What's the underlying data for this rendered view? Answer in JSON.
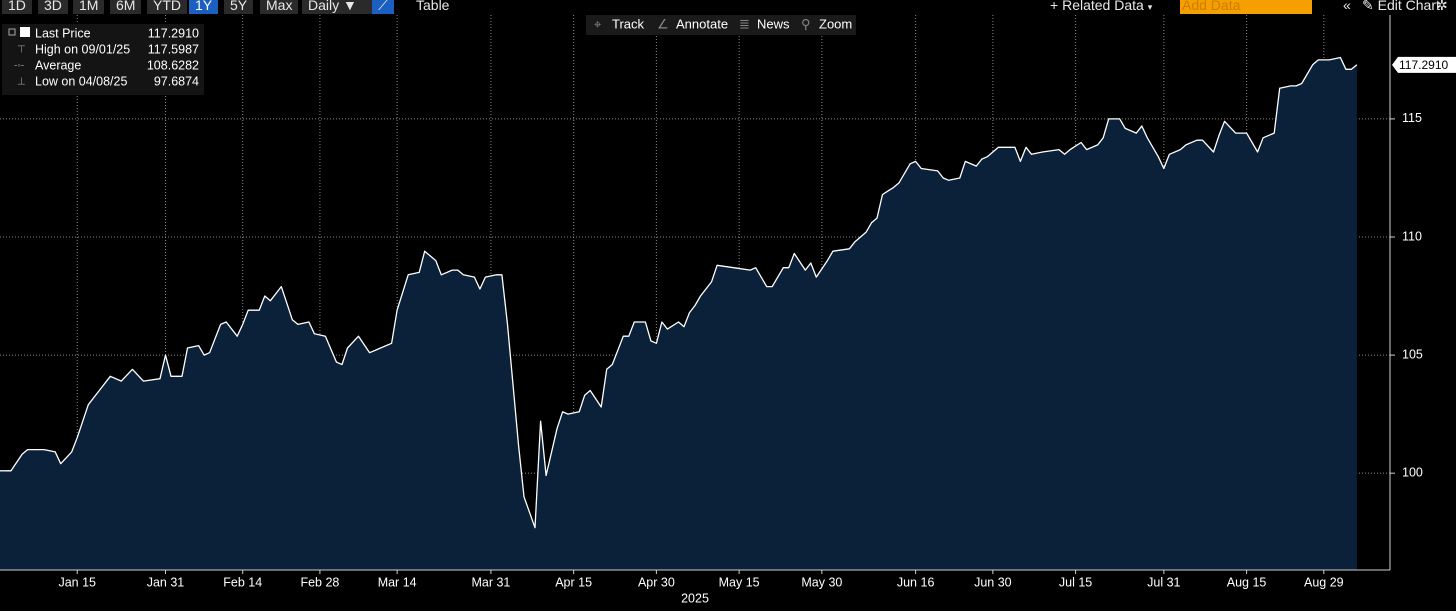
{
  "toolbar": {
    "periods": [
      "1D",
      "3D",
      "1M",
      "6M",
      "YTD",
      "1Y",
      "5Y",
      "Max"
    ],
    "active_period": "1Y",
    "frequency": "Daily",
    "view": "Table",
    "related": "Related Data",
    "add_data": "Add Data",
    "edit": "Edit Chart"
  },
  "chart_tools": [
    "Track",
    "Annotate",
    "News",
    "Zoom"
  ],
  "chart_data": {
    "type": "area",
    "xlabel": "2025",
    "color": "#ffffff",
    "fill": "#0b2039",
    "legend": [
      {
        "label": "Last Price",
        "value": "117.2910"
      },
      {
        "label": "High on 09/01/25",
        "value": "117.5987"
      },
      {
        "label": "Average",
        "value": "108.6282"
      },
      {
        "label": "Low on 04/08/25",
        "value": "97.6874"
      }
    ],
    "x": [
      "2025-01-02",
      "2025-01-03",
      "2025-01-05",
      "2025-01-06",
      "2025-01-09",
      "2025-01-11",
      "2025-01-12",
      "2025-01-14",
      "2025-01-15",
      "2025-01-17",
      "2025-01-19",
      "2025-01-21",
      "2025-01-23",
      "2025-01-25",
      "2025-01-27",
      "2025-01-30",
      "2025-01-31",
      "2025-02-01",
      "2025-02-03",
      "2025-02-04",
      "2025-02-06",
      "2025-02-07",
      "2025-02-08",
      "2025-02-10",
      "2025-02-11",
      "2025-02-13",
      "2025-02-14",
      "2025-02-15",
      "2025-02-17",
      "2025-02-18",
      "2025-02-19",
      "2025-02-21",
      "2025-02-22",
      "2025-02-23",
      "2025-02-24",
      "2025-02-26",
      "2025-02-27",
      "2025-03-01",
      "2025-03-03",
      "2025-03-04",
      "2025-03-05",
      "2025-03-07",
      "2025-03-09",
      "2025-03-10",
      "2025-03-12",
      "2025-03-13",
      "2025-03-14",
      "2025-03-16",
      "2025-03-18",
      "2025-03-19",
      "2025-03-21",
      "2025-03-22",
      "2025-03-24",
      "2025-03-25",
      "2025-03-26",
      "2025-03-28",
      "2025-03-29",
      "2025-03-30",
      "2025-04-01",
      "2025-04-02",
      "2025-04-03",
      "2025-04-05",
      "2025-04-06",
      "2025-04-08",
      "2025-04-09",
      "2025-04-10",
      "2025-04-12",
      "2025-04-13",
      "2025-04-14",
      "2025-04-16",
      "2025-04-17",
      "2025-04-18",
      "2025-04-20",
      "2025-04-21",
      "2025-04-22",
      "2025-04-24",
      "2025-04-25",
      "2025-04-26",
      "2025-04-28",
      "2025-04-29",
      "2025-04-30",
      "2025-05-01",
      "2025-05-02",
      "2025-05-04",
      "2025-05-05",
      "2025-05-06",
      "2025-05-07",
      "2025-05-08",
      "2025-05-10",
      "2025-05-11",
      "2025-05-14",
      "2025-05-17",
      "2025-05-18",
      "2025-05-20",
      "2025-05-21",
      "2025-05-23",
      "2025-05-24",
      "2025-05-25",
      "2025-05-27",
      "2025-05-28",
      "2025-05-29",
      "2025-05-31",
      "2025-06-01",
      "2025-06-04",
      "2025-06-05",
      "2025-06-07",
      "2025-06-08",
      "2025-06-09",
      "2025-06-10",
      "2025-06-12",
      "2025-06-13",
      "2025-06-15",
      "2025-06-16",
      "2025-06-17",
      "2025-06-20",
      "2025-06-21",
      "2025-06-22",
      "2025-06-24",
      "2025-06-25",
      "2025-06-27",
      "2025-06-28",
      "2025-06-29",
      "2025-07-01",
      "2025-07-04",
      "2025-07-05",
      "2025-07-06",
      "2025-07-07",
      "2025-07-09",
      "2025-07-12",
      "2025-07-13",
      "2025-07-14",
      "2025-07-16",
      "2025-07-17",
      "2025-07-19",
      "2025-07-20",
      "2025-07-21",
      "2025-07-23",
      "2025-07-24",
      "2025-07-26",
      "2025-07-27",
      "2025-07-28",
      "2025-07-30",
      "2025-07-31",
      "2025-08-01",
      "2025-08-03",
      "2025-08-04",
      "2025-08-06",
      "2025-08-07",
      "2025-08-09",
      "2025-08-10",
      "2025-08-11",
      "2025-08-13",
      "2025-08-15",
      "2025-08-17",
      "2025-08-18",
      "2025-08-20",
      "2025-08-21",
      "2025-08-23",
      "2025-08-24",
      "2025-08-25",
      "2025-08-27",
      "2025-08-28",
      "2025-08-30",
      "2025-09-01",
      "2025-09-02",
      "2025-09-03",
      "2025-09-04"
    ],
    "values": [
      100.1,
      100.1,
      100.8,
      101.0,
      101.0,
      100.9,
      100.4,
      100.9,
      101.5,
      102.9,
      103.5,
      104.1,
      103.9,
      104.4,
      103.9,
      104.0,
      105.0,
      104.1,
      104.1,
      105.3,
      105.4,
      105.0,
      105.1,
      106.3,
      106.4,
      105.8,
      106.3,
      106.9,
      106.9,
      107.5,
      107.3,
      107.9,
      107.2,
      106.5,
      106.3,
      106.4,
      105.9,
      105.8,
      104.7,
      104.6,
      105.3,
      105.8,
      105.1,
      105.2,
      105.4,
      105.5,
      106.9,
      108.4,
      108.5,
      109.4,
      109.0,
      108.4,
      108.6,
      108.6,
      108.4,
      108.3,
      107.8,
      108.3,
      108.4,
      108.4,
      106.3,
      101.2,
      99.0,
      97.69,
      102.2,
      99.9,
      101.9,
      102.6,
      102.5,
      102.6,
      103.3,
      103.5,
      102.8,
      104.4,
      104.6,
      105.8,
      105.8,
      106.4,
      106.4,
      105.6,
      105.5,
      106.4,
      106.1,
      106.4,
      106.2,
      106.8,
      107.1,
      107.5,
      108.1,
      108.8,
      108.7,
      108.6,
      108.7,
      107.9,
      107.9,
      108.7,
      108.7,
      109.3,
      108.6,
      108.9,
      108.3,
      109.0,
      109.4,
      109.5,
      109.8,
      110.2,
      110.6,
      110.8,
      111.8,
      112.1,
      112.3,
      113.1,
      113.2,
      112.9,
      112.8,
      112.5,
      112.4,
      112.5,
      113.2,
      113.0,
      113.3,
      113.4,
      113.8,
      113.8,
      113.2,
      113.8,
      113.5,
      113.6,
      113.7,
      113.5,
      113.7,
      114.0,
      113.7,
      113.9,
      114.2,
      115.0,
      115.0,
      114.6,
      114.4,
      114.7,
      114.2,
      113.4,
      112.9,
      113.5,
      113.7,
      113.9,
      114.1,
      114.1,
      113.6,
      114.3,
      114.9,
      114.4,
      114.4,
      113.6,
      114.2,
      114.4,
      116.3,
      116.4,
      116.4,
      116.5,
      117.3,
      117.5,
      117.5,
      117.6,
      117.1,
      117.1,
      117.29
    ],
    "xlim": [
      "2025-01-01",
      "2025-09-10"
    ],
    "xticks": [
      {
        "value": "2025-01-15",
        "label": "Jan 15"
      },
      {
        "value": "2025-01-31",
        "label": "Jan 31"
      },
      {
        "value": "2025-02-14",
        "label": "Feb 14"
      },
      {
        "value": "2025-02-28",
        "label": "Feb 28"
      },
      {
        "value": "2025-03-14",
        "label": "Mar 14"
      },
      {
        "value": "2025-03-31",
        "label": "Mar 31"
      },
      {
        "value": "2025-04-15",
        "label": "Apr 15"
      },
      {
        "value": "2025-04-30",
        "label": "Apr 30"
      },
      {
        "value": "2025-05-15",
        "label": "May 15"
      },
      {
        "value": "2025-05-30",
        "label": "May 30"
      },
      {
        "value": "2025-06-16",
        "label": "Jun 16"
      },
      {
        "value": "2025-06-30",
        "label": "Jun 30"
      },
      {
        "value": "2025-07-15",
        "label": "Jul 15"
      },
      {
        "value": "2025-07-31",
        "label": "Jul 31"
      },
      {
        "value": "2025-08-15",
        "label": "Aug 15"
      },
      {
        "value": "2025-08-29",
        "label": "Aug 29"
      }
    ],
    "ylim": [
      95.9,
      119.4
    ],
    "yticks": [
      100,
      105,
      110,
      115
    ],
    "grid": true
  }
}
